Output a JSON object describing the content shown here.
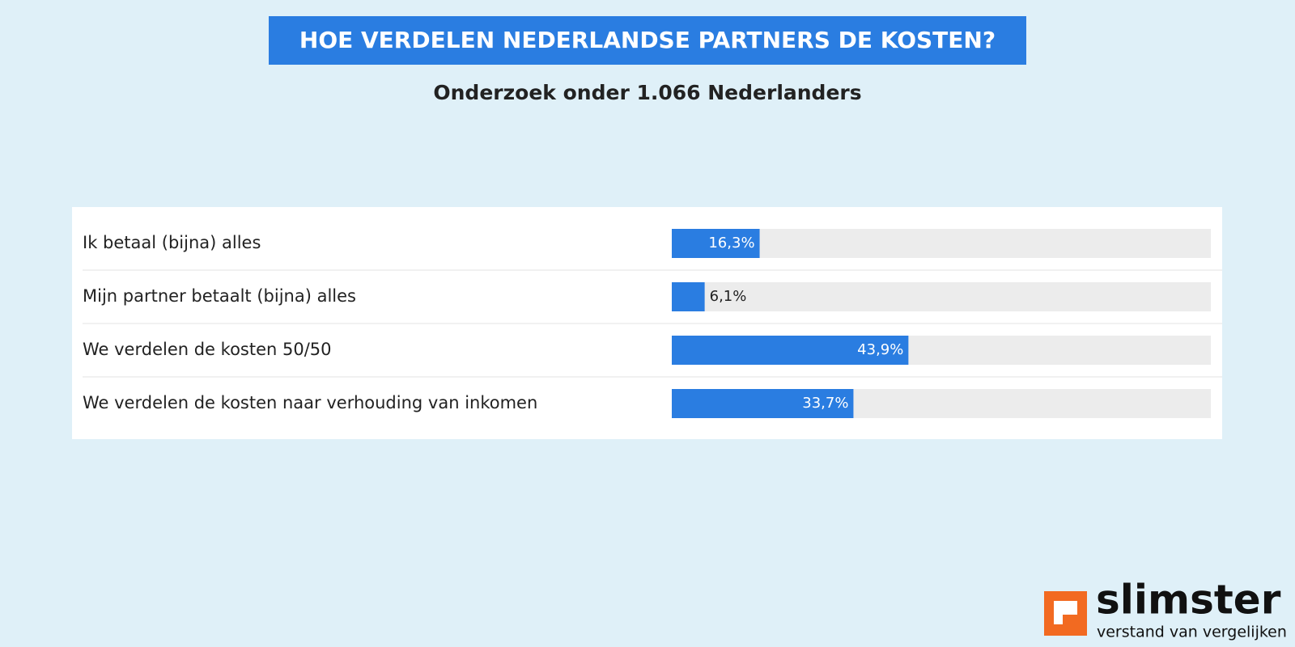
{
  "chart_data": {
    "type": "bar",
    "orientation": "horizontal",
    "title": "HOE VERDELEN NEDERLANDSE PARTNERS DE KOSTEN?",
    "subtitle": "Onderzoek onder 1.066 Nederlanders",
    "categories": [
      "Ik betaal (bijna) alles",
      "Mijn partner betaalt (bijna) alles",
      "We verdelen de kosten 50/50",
      "We verdelen de kosten naar verhouding van inkomen"
    ],
    "values": [
      16.3,
      6.1,
      43.9,
      33.7
    ],
    "value_labels": [
      "16,3%",
      "6,1%",
      "43,9%",
      "33,7%"
    ],
    "color": "#2a7de1",
    "xlim": [
      0,
      100
    ]
  },
  "branding": {
    "name": "slimster",
    "tagline": "verstand van vergelijken"
  }
}
